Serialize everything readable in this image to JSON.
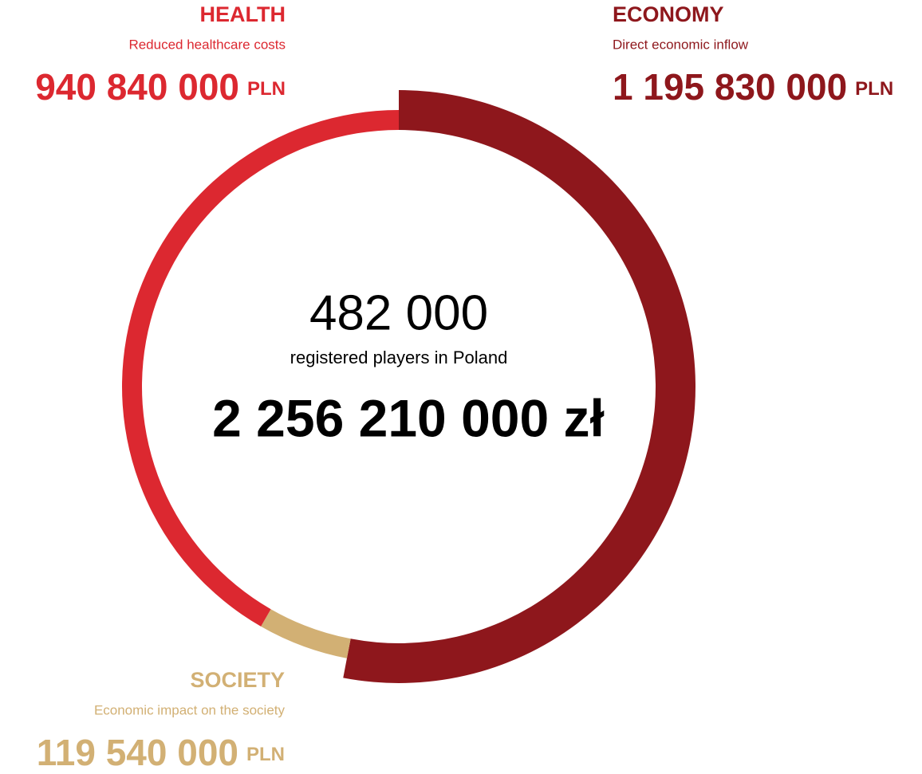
{
  "chart_data": {
    "type": "donut",
    "categories": [
      "ECONOMY",
      "SOCIETY",
      "HEALTH"
    ],
    "descriptions": [
      "Direct economic inflow",
      "Economic impact on the society",
      "Reduced healthcare costs"
    ],
    "values": [
      1195830000,
      119540000,
      940840000
    ],
    "value_labels": [
      "1 195 830 000",
      "119 540 000",
      "940 840 000"
    ],
    "unit": "PLN",
    "colors": [
      "#8e171c",
      "#d2b074",
      "#dc2830"
    ],
    "center": {
      "players": "482 000",
      "caption": "registered players in Poland",
      "total": "2 256 210 000 zł"
    }
  }
}
